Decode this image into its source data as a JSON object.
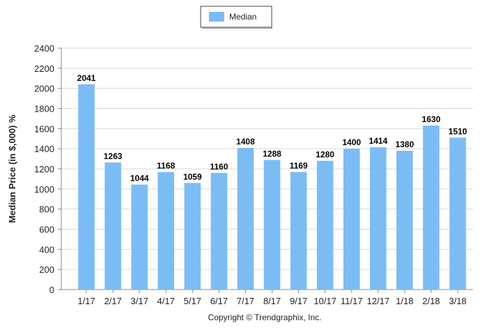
{
  "legend": {
    "label": "Median"
  },
  "colors": {
    "bar": "#7cbcf4",
    "grid": "#d9d9d9",
    "axis": "#888888"
  },
  "footer": {
    "copyright": "Copyright © Trendgraphix, Inc."
  },
  "chart_data": {
    "type": "bar",
    "title": "",
    "xlabel": "",
    "ylabel": "Median Price (in $,000) %",
    "ylim": [
      0,
      2400
    ],
    "yticks": [
      0,
      200,
      400,
      600,
      800,
      1000,
      1200,
      1400,
      1600,
      1800,
      2000,
      2200,
      2400
    ],
    "grid": true,
    "legend_position": "top-center",
    "categories": [
      "1/17",
      "2/17",
      "3/17",
      "4/17",
      "5/17",
      "6/17",
      "7/17",
      "8/17",
      "9/17",
      "10/17",
      "11/17",
      "12/17",
      "1/18",
      "2/18",
      "3/18"
    ],
    "series": [
      {
        "name": "Median",
        "values": [
          2041,
          1263,
          1044,
          1168,
          1059,
          1160,
          1408,
          1288,
          1169,
          1280,
          1400,
          1414,
          1380,
          1630,
          1510
        ]
      }
    ]
  }
}
